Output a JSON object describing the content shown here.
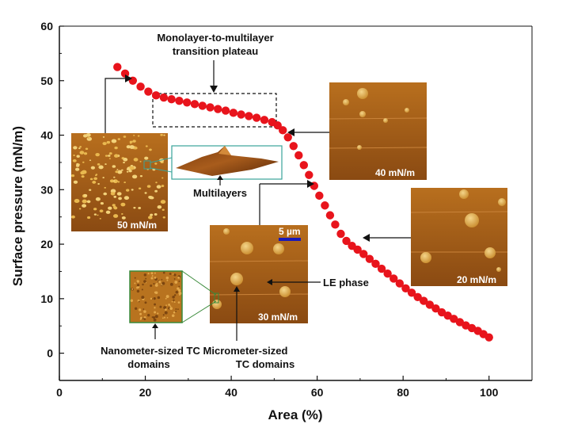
{
  "chart_data": {
    "type": "scatter",
    "xlabel": "Area (%)",
    "ylabel": "Surface pressure (mN/m)",
    "xlim": [
      0,
      110
    ],
    "ylim": [
      -5,
      60
    ],
    "x_ticks": [
      0,
      20,
      40,
      60,
      80,
      100
    ],
    "y_ticks": [
      0,
      10,
      20,
      30,
      40,
      50,
      60
    ],
    "grid": false,
    "marker_color": "#e8141c",
    "series": [
      {
        "x": [
          13.5,
          15.3,
          17.1,
          18.9,
          20.7,
          22.5,
          24.3,
          26.1,
          27.9,
          29.7,
          31.5,
          33.3,
          35.1,
          36.9,
          38.7,
          40.5,
          42.3,
          44.1,
          45.9,
          47.7,
          49.5,
          50.8,
          52.0,
          53.2,
          54.5,
          55.7,
          56.9,
          58.1,
          59.3,
          60.5,
          61.8,
          63.0,
          64.2,
          65.5,
          66.8,
          68.1,
          69.4,
          70.8,
          72.2,
          73.6,
          75.0,
          76.4,
          77.8,
          79.2,
          80.6,
          82.0,
          83.4,
          84.8,
          86.2,
          87.6,
          89.0,
          90.4,
          91.8,
          93.2,
          94.6,
          96.0,
          97.4,
          98.7,
          100.0
        ],
        "y": [
          52.5,
          51.3,
          50.0,
          48.9,
          48.0,
          47.3,
          46.9,
          46.6,
          46.3,
          46.0,
          45.7,
          45.4,
          45.1,
          44.8,
          44.5,
          44.1,
          43.8,
          43.5,
          43.2,
          42.8,
          42.4,
          41.8,
          40.9,
          39.6,
          38.0,
          36.3,
          34.5,
          32.7,
          30.7,
          28.9,
          27.1,
          25.3,
          23.6,
          21.9,
          20.6,
          19.7,
          19.0,
          18.2,
          17.3,
          16.4,
          15.5,
          14.6,
          13.7,
          12.8,
          11.9,
          11.1,
          10.3,
          9.6,
          8.9,
          8.2,
          7.5,
          6.9,
          6.3,
          5.7,
          5.1,
          4.6,
          4.1,
          3.5,
          2.9
        ]
      }
    ],
    "annotations": [
      {
        "text": "Monolayer-to-multilayer transition plateau"
      },
      {
        "text": "Multilayers"
      },
      {
        "text": "LE phase"
      },
      {
        "text": "Nanometer-sized TC domains"
      },
      {
        "text": "Micrometer-sized TC domains"
      }
    ],
    "insets": [
      {
        "label": "50 mN/m"
      },
      {
        "label": "40 mN/m"
      },
      {
        "label": "30 mN/m",
        "scalebar": "5 µm"
      },
      {
        "label": "20 mN/m"
      }
    ]
  },
  "text": {
    "plateau_line1": "Monolayer-to-multilayer",
    "plateau_line2": "transition plateau",
    "multilayers": "Multilayers",
    "le_phase": "LE phase",
    "nano_line1": "Nanometer-sized TC",
    "nano_line2": "domains",
    "micro_line1": "Micrometer-sized",
    "micro_line2": "TC domains"
  }
}
